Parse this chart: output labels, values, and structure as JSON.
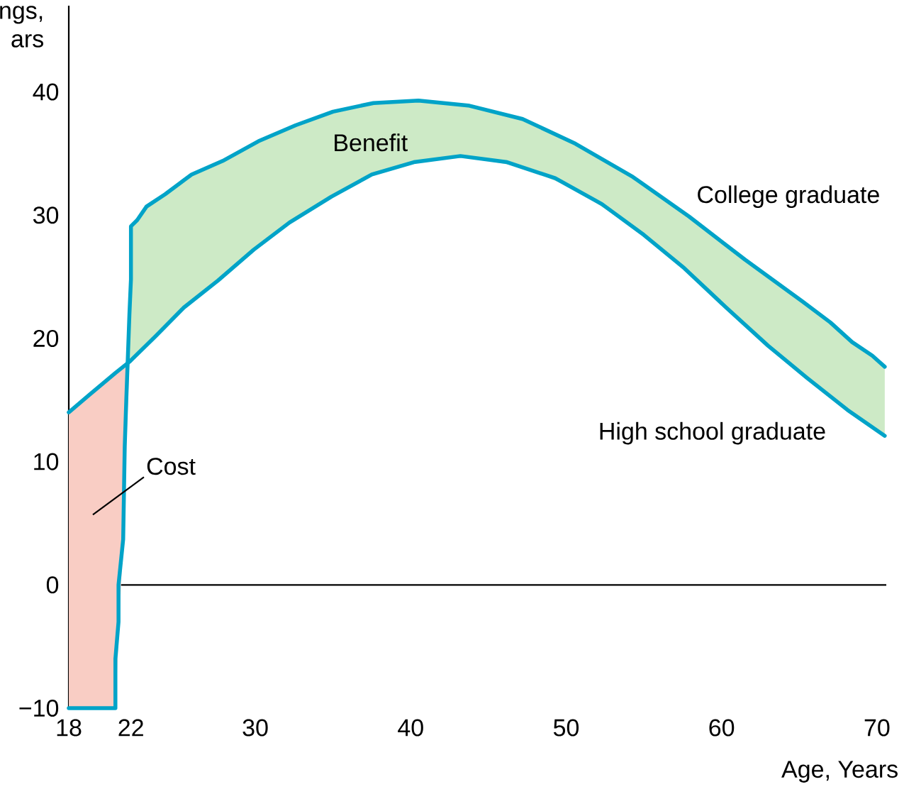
{
  "chart_data": {
    "type": "line",
    "ylabel": "ngs, ars",
    "xlabel": "Age, Years",
    "xlim": [
      18,
      70.6
    ],
    "ylim": [
      -10,
      47
    ],
    "xticks": [
      18,
      22,
      30,
      40,
      50,
      60,
      70
    ],
    "yticks": [
      {
        "value": -10,
        "label": "−10"
      },
      0,
      10,
      20,
      30,
      40
    ],
    "grid": false,
    "legend": false,
    "marker": "none",
    "line_style": "solid",
    "ref_lines": [
      {
        "axis": "y",
        "value": 0,
        "color": "#000000"
      }
    ],
    "series": [
      {
        "name": "College graduate",
        "color": "#00a3c8",
        "x": [
          18,
          21,
          21,
          21.2,
          21.2,
          21.5,
          21.6,
          21.7,
          21.9,
          22,
          22,
          22.4,
          23,
          24.2,
          25.9,
          27.9,
          30.2,
          32.6,
          35,
          37.6,
          40.5,
          43.7,
          47.2,
          50.6,
          54.3,
          57.9,
          61.5,
          65.2,
          67,
          68.4,
          69.7,
          70.5
        ],
        "values": [
          -10,
          -10,
          -6,
          -3,
          0,
          3.7,
          11.2,
          15,
          21.9,
          24.8,
          29.1,
          29.6,
          30.7,
          31.7,
          33.3,
          34.4,
          36,
          37.3,
          38.4,
          39.1,
          39.3,
          38.9,
          37.8,
          35.8,
          33.1,
          29.9,
          26.4,
          23,
          21.3,
          19.7,
          18.6,
          17.7
        ],
        "lower": [
          null,
          null,
          null,
          null,
          null,
          null,
          null,
          null,
          18.1,
          18.2,
          18.2,
          18.7,
          19.4,
          20.9,
          23,
          25,
          27.5,
          29.8,
          31.5,
          33.3,
          34.4,
          34.7,
          33.9,
          32.1,
          29,
          25.4,
          21.1,
          17.1,
          15.2,
          13.9,
          12.7,
          12.1
        ],
        "upper": [
          null,
          null,
          null,
          null,
          null,
          null,
          null,
          null,
          18.1,
          24.8,
          29.1,
          29.6,
          30.7,
          31.7,
          33.3,
          34.4,
          36,
          37.3,
          38.4,
          39.1,
          39.3,
          38.9,
          37.8,
          35.8,
          33.1,
          29.9,
          26.4,
          23,
          21.3,
          19.7,
          18.6,
          17.7
        ]
      },
      {
        "name": "High school graduate",
        "color": "#00a3c8",
        "x": [
          18,
          19.3,
          21,
          21.5,
          21.9,
          23.6,
          25.4,
          27.6,
          29.9,
          32.2,
          34.9,
          37.5,
          40.2,
          43.2,
          46.2,
          49.3,
          52.3,
          55,
          57.6,
          60.3,
          63,
          65.5,
          68.1,
          70.5
        ],
        "values": [
          14,
          15.4,
          17.2,
          17.7,
          18.1,
          20.2,
          22.5,
          24.7,
          27.2,
          29.4,
          31.5,
          33.3,
          34.3,
          34.8,
          34.3,
          33,
          30.9,
          28.4,
          25.7,
          22.5,
          19.4,
          16.8,
          14.2,
          12.1
        ],
        "lower": [
          -10,
          -10,
          -10,
          3.7,
          18.1,
          null,
          null,
          null,
          null,
          null,
          null,
          null,
          null,
          null,
          null,
          null,
          null,
          null,
          null,
          null,
          null,
          null,
          null,
          null
        ],
        "upper": [
          14,
          15.4,
          17.2,
          17.7,
          18.1,
          null,
          null,
          null,
          null,
          null,
          null,
          null,
          null,
          null,
          null,
          null,
          null,
          null,
          null,
          null,
          null,
          null,
          null,
          null
        ]
      }
    ],
    "annotations": [
      "Benefit",
      "Cost"
    ]
  }
}
